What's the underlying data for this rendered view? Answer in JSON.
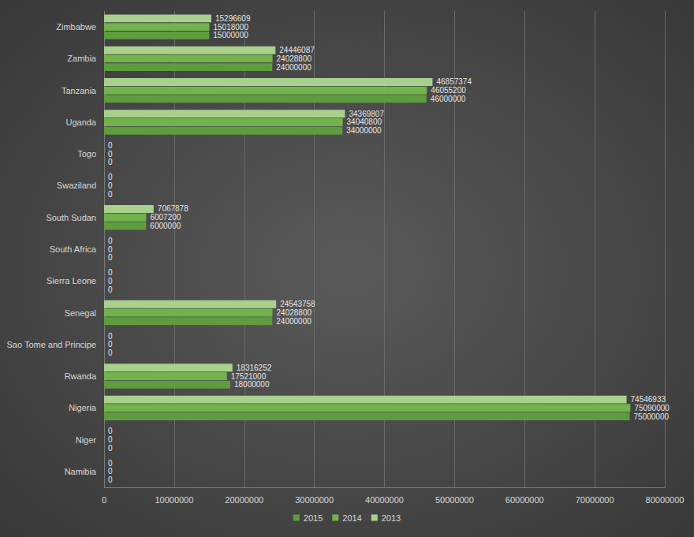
{
  "chart_data": {
    "type": "bar",
    "orientation": "horizontal",
    "categories": [
      "Namibia",
      "Niger",
      "Nigeria",
      "Rwanda",
      "Sao Tome and Principe",
      "Senegal",
      "Sierra Leone",
      "South Africa",
      "South Sudan",
      "Swaziland",
      "Togo",
      "Uganda",
      "Tanzania",
      "Zambia",
      "Zimbabwe"
    ],
    "series": [
      {
        "name": "2015",
        "color": "#5e9c3f",
        "values": [
          0,
          0,
          75000000,
          18000000,
          0,
          24000000,
          0,
          0,
          6000000,
          0,
          0,
          34000000,
          46000000,
          24000000,
          15000000
        ]
      },
      {
        "name": "2014",
        "color": "#72b34c",
        "values": [
          0,
          0,
          75090000,
          17521000,
          0,
          24028800,
          0,
          0,
          6007200,
          0,
          0,
          34040800,
          46055200,
          24028800,
          15018000
        ]
      },
      {
        "name": "2013",
        "color": "#a9d18e",
        "values": [
          0,
          0,
          74546933,
          18316252,
          0,
          24543758,
          0,
          0,
          7067878,
          0,
          0,
          34369807,
          46857374,
          24446087,
          15296609
        ]
      }
    ],
    "xlim": [
      0,
      80000000
    ],
    "xticks": [
      0,
      10000000,
      20000000,
      30000000,
      40000000,
      50000000,
      60000000,
      70000000,
      80000000
    ],
    "grid": true,
    "legend": "bottom",
    "data_labels": true
  }
}
